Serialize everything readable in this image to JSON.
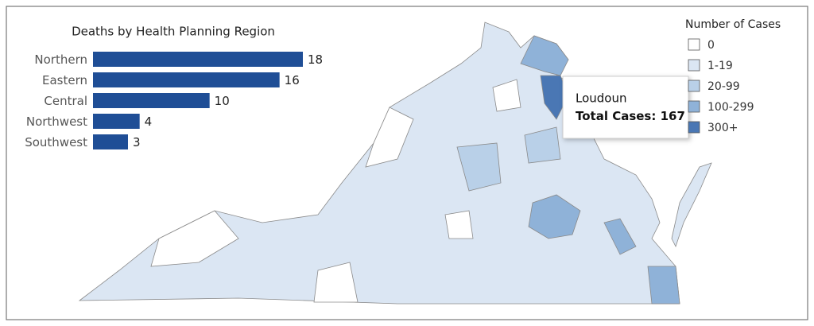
{
  "chart_data": {
    "type": "bar",
    "orientation": "horizontal",
    "title": "Deaths by Health Planning Region",
    "categories": [
      "Northern",
      "Eastern",
      "Central",
      "Northwest",
      "Southwest"
    ],
    "values": [
      18,
      16,
      10,
      4,
      3
    ],
    "color": "#1f4e96"
  },
  "legend": {
    "title": "Number of Cases",
    "items": [
      {
        "label": "0",
        "color": "#ffffff"
      },
      {
        "label": "1-19",
        "color": "#dbe6f3"
      },
      {
        "label": "20-99",
        "color": "#b9d0e8"
      },
      {
        "label": "100-299",
        "color": "#8fb2d8"
      },
      {
        "label": "300+",
        "color": "#4a77b4"
      }
    ]
  },
  "tooltip": {
    "name": "Loudoun",
    "label": "Total Cases:",
    "value": 167
  }
}
